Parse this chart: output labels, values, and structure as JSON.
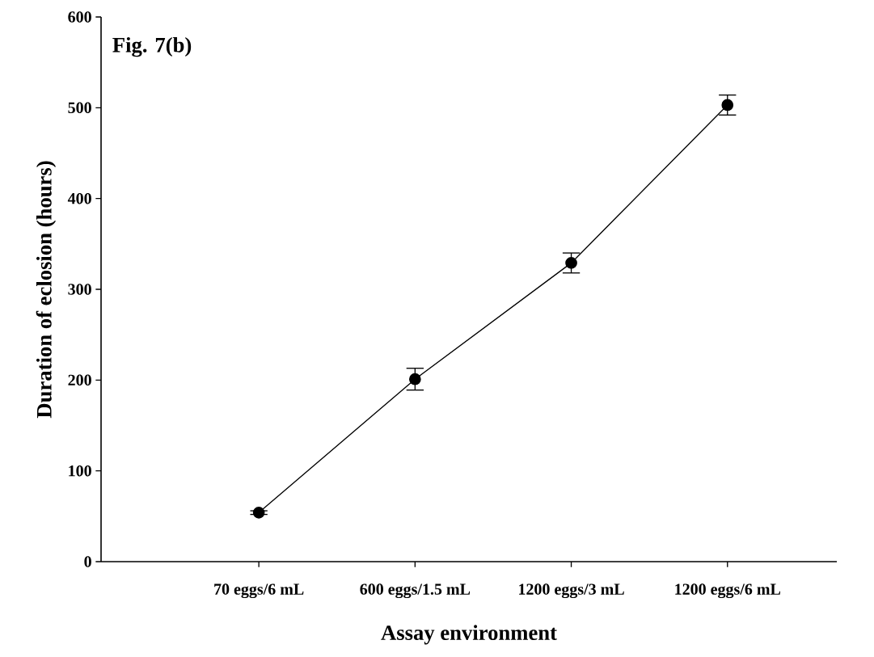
{
  "chart_data": {
    "type": "line",
    "title": "Fig. 7(b)",
    "xlabel": "Assay environment",
    "ylabel": "Duration of eclosion (hours)",
    "categories": [
      "70 eggs/6 mL",
      "600 eggs/1.5 mL",
      "1200 eggs/3 mL",
      "1200 eggs/6 mL"
    ],
    "series": [
      {
        "color": "#000000",
        "values": [
          54,
          201,
          329,
          503
        ],
        "errors": [
          2,
          12,
          11,
          11
        ]
      }
    ],
    "ylim": [
      0,
      600
    ],
    "yticks": [
      0,
      100,
      200,
      300,
      400,
      500,
      600
    ],
    "marker": "circle",
    "line_style": "solid",
    "grid": false
  }
}
